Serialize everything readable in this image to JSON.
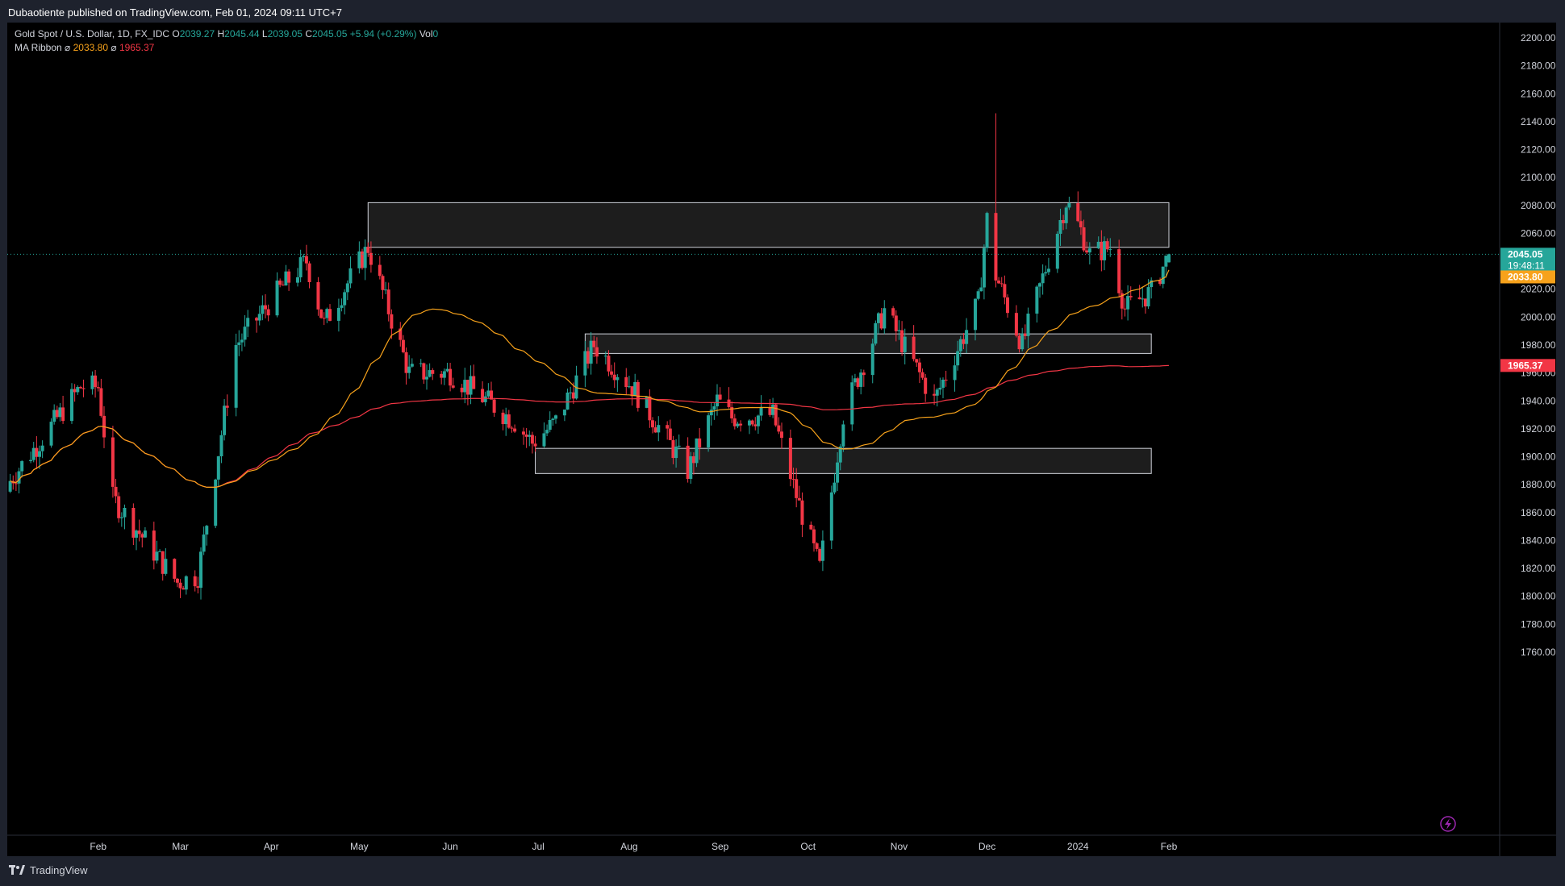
{
  "header": {
    "publisher": "Dubaotiente published on TradingView.com, Feb 01, 2024 09:11 UTC+7"
  },
  "legend": {
    "symbol": "Gold Spot / U.S. Dollar, 1D, FX_IDC",
    "o_label": "O",
    "o_value": "2039.27",
    "h_label": "H",
    "h_value": "2045.44",
    "l_label": "L",
    "l_value": "2039.05",
    "c_label": "C",
    "c_value": "2045.05",
    "change": "+5.94 (+0.29%)",
    "vol_label": "Vol",
    "vol_value": "0",
    "indicator": "MA Ribbon",
    "ma_fast_symbol": "⌀",
    "ma_fast_value": "2033.80",
    "ma_slow_symbol": "⌀",
    "ma_slow_value": "1965.37"
  },
  "price_tags": {
    "last_price": "2045.05",
    "countdown": "19:48:11",
    "ma_fast": "2033.80",
    "ma_slow": "1965.37"
  },
  "footer": {
    "logo_text": "TradingView"
  },
  "colors": {
    "up": "#26a69a",
    "down": "#f23645",
    "ma_fast": "#f7a21b",
    "ma_slow": "#f23645",
    "zone_border": "#d1d4dc",
    "zone_fill": "#2a2a2a",
    "background": "#000000"
  },
  "icons": {
    "flash": "lightning-icon",
    "logo": "tradingview-logo-icon"
  },
  "chart_data": {
    "type": "candlestick",
    "title": "Gold Spot / U.S. Dollar, 1D, FX_IDC",
    "y_axis": {
      "min": 1750,
      "max": 2200,
      "ticks": [
        1760,
        1780,
        1800,
        1820,
        1840,
        1860,
        1880,
        1900,
        1920,
        1940,
        1960,
        1980,
        2000,
        2020,
        2040,
        2060,
        2080,
        2100,
        2120,
        2140,
        2160,
        2180,
        2200
      ]
    },
    "x_axis": {
      "labels": [
        "Feb",
        "Mar",
        "Apr",
        "May",
        "Jun",
        "Jul",
        "Aug",
        "Sep",
        "Oct",
        "Nov",
        "Dec",
        "2024",
        "Feb"
      ]
    },
    "series_key_points": [
      {
        "date": "Jan-2023",
        "close": 1880
      },
      {
        "date": "Feb-01",
        "close": 1950
      },
      {
        "date": "Feb-28",
        "close": 1810
      },
      {
        "date": "Apr-13",
        "close": 2040
      },
      {
        "date": "May-04",
        "close": 2050
      },
      {
        "date": "Jun-01",
        "close": 1960
      },
      {
        "date": "Jun-29",
        "close": 1910
      },
      {
        "date": "Jul-20",
        "close": 1980
      },
      {
        "date": "Aug-21",
        "close": 1890
      },
      {
        "date": "Sep-01",
        "close": 1940
      },
      {
        "date": "Oct-05",
        "close": 1820
      },
      {
        "date": "Oct-27",
        "close": 2005
      },
      {
        "date": "Nov-13",
        "close": 1940
      },
      {
        "date": "Dec-01",
        "close": 2070
      },
      {
        "date": "Dec-13",
        "close": 1980
      },
      {
        "date": "Dec-28",
        "close": 2083
      },
      {
        "date": "Jan-17",
        "close": 2006
      },
      {
        "date": "Feb-01-2024",
        "close": 2045.05
      }
    ],
    "last": {
      "open": 2039.27,
      "high": 2045.44,
      "low": 2039.05,
      "close": 2045.05
    },
    "moving_averages": [
      {
        "name": "MA Ribbon",
        "value": 2033.8
      },
      {
        "name": "MA Ribbon",
        "value": 1965.37
      }
    ],
    "zones": [
      {
        "from_price": 2050,
        "to_price": 2082,
        "start": "May-04",
        "end": "Feb-01-2024"
      },
      {
        "from_price": 1974,
        "to_price": 1988,
        "start": "Jul-17",
        "end": "Jan-26-2024"
      },
      {
        "from_price": 1888,
        "to_price": 1906,
        "start": "Jun-30",
        "end": "Jan-26-2024"
      }
    ]
  }
}
